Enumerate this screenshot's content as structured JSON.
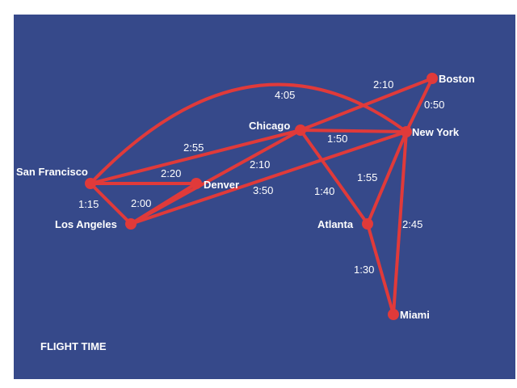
{
  "colors": {
    "background": "#36498a",
    "route": "#e03a3a",
    "text": "#ffffff"
  },
  "title": "FLIGHT TIME",
  "cities": {
    "sf": "San Francisco",
    "la": "Los Angeles",
    "den": "Denver",
    "chi": "Chicago",
    "ny": "New York",
    "bos": "Boston",
    "atl": "Atlanta",
    "mia": "Miami"
  },
  "routes": [
    {
      "from": "San Francisco",
      "to": "Los Angeles",
      "time": "1:15"
    },
    {
      "from": "San Francisco",
      "to": "Denver",
      "time": "2:20"
    },
    {
      "from": "San Francisco",
      "to": "Chicago",
      "time": "2:55"
    },
    {
      "from": "San Francisco",
      "to": "New York",
      "time": "4:05"
    },
    {
      "from": "Los Angeles",
      "to": "Denver",
      "time": "2:00"
    },
    {
      "from": "Los Angeles",
      "to": "Chicago",
      "time": "2:10"
    },
    {
      "from": "Los Angeles",
      "to": "New York",
      "time": "3:50"
    },
    {
      "from": "Chicago",
      "to": "New York",
      "time": "1:50"
    },
    {
      "from": "Chicago",
      "to": "Boston",
      "time": "2:10"
    },
    {
      "from": "Chicago",
      "to": "Atlanta",
      "time": "1:40"
    },
    {
      "from": "New York",
      "to": "Boston",
      "time": "0:50"
    },
    {
      "from": "New York",
      "to": "Atlanta",
      "time": "1:55"
    },
    {
      "from": "New York",
      "to": "Miami",
      "time": "2:45"
    },
    {
      "from": "Atlanta",
      "to": "Miami",
      "time": "1:30"
    }
  ]
}
